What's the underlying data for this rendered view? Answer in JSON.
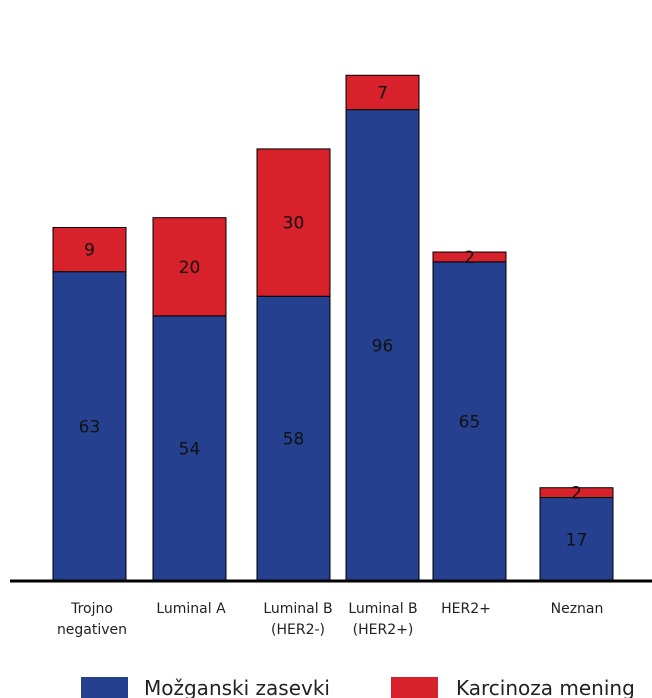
{
  "chart_data": {
    "type": "bar",
    "stacked": true,
    "categories": [
      [
        "Trojno",
        "negativen"
      ],
      [
        "Luminal A"
      ],
      [
        "Luminal B",
        "(HER2-)"
      ],
      [
        "Luminal B",
        "(HER2+)"
      ],
      [
        "HER2+"
      ],
      [
        "Neznan"
      ]
    ],
    "series": [
      {
        "name": "Možganski zasevki",
        "color": "#24408f",
        "values": [
          63,
          54,
          58,
          96,
          65,
          17
        ]
      },
      {
        "name": "Karcinoza mening",
        "color": "#d7212b",
        "values": [
          9,
          20,
          30,
          7,
          2,
          2
        ]
      }
    ],
    "ylim": [
      0,
      105
    ],
    "grid": false,
    "legend_position": "bottom",
    "title": "",
    "xlabel": "",
    "ylabel": ""
  }
}
